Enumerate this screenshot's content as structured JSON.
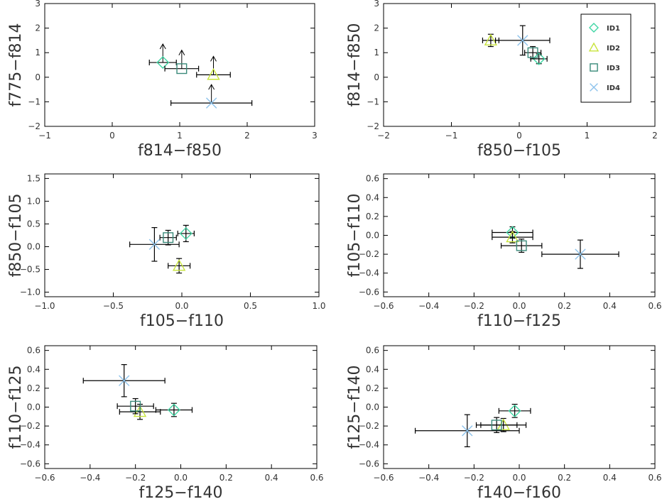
{
  "colors": {
    "ID1": "#3fd6a4",
    "ID2": "#c8e43c",
    "ID3": "#3a8a7a",
    "ID4": "#8ec3ec",
    "errorbar": "#000000",
    "axes": "#000000"
  },
  "markers": {
    "ID1": "diamond-icon",
    "ID2": "triangle-icon",
    "ID3": "square-icon",
    "ID4": "cross-icon"
  },
  "legend": {
    "panel": 1,
    "position": "top-right",
    "entries": [
      "ID1",
      "ID2",
      "ID3",
      "ID4"
    ]
  },
  "chart_data": [
    {
      "type": "scatter",
      "xlabel": "f814−f850",
      "ylabel": "f775−f814",
      "xlim": [
        -1,
        3
      ],
      "ylim": [
        -2,
        3
      ],
      "xticks": [
        -1,
        0,
        1,
        2,
        3
      ],
      "yticks": [
        -2,
        -1,
        0,
        1,
        2,
        3
      ],
      "xtick_labels": [
        "−1",
        "0",
        "1",
        "2",
        "3"
      ],
      "ytick_labels": [
        "−2",
        "−1",
        "0",
        "1",
        "2",
        "3"
      ],
      "series": [
        {
          "name": "ID1",
          "x": 0.75,
          "y": 0.6,
          "xerr": 0.2,
          "yerr": 0,
          "lower_limit": true
        },
        {
          "name": "ID2",
          "x": 1.5,
          "y": 0.1,
          "xerr": 0.25,
          "yerr": 0,
          "lower_limit": true
        },
        {
          "name": "ID3",
          "x": 1.03,
          "y": 0.35,
          "xerr": 0.25,
          "yerr": 0,
          "lower_limit": true
        },
        {
          "name": "ID4",
          "x": 1.47,
          "y": -1.05,
          "xerr": 0.6,
          "yerr": 0,
          "lower_limit": true
        }
      ]
    },
    {
      "type": "scatter",
      "xlabel": "f850−f105",
      "ylabel": "f814−f850",
      "xlim": [
        -2,
        2
      ],
      "ylim": [
        -2,
        3
      ],
      "xticks": [
        -2,
        -1,
        0,
        1,
        2
      ],
      "yticks": [
        -2,
        -1,
        0,
        1,
        2,
        3
      ],
      "xtick_labels": [
        "−2",
        "−1",
        "0",
        "1",
        "2"
      ],
      "ytick_labels": [
        "−2",
        "−1",
        "0",
        "1",
        "2",
        "3"
      ],
      "series": [
        {
          "name": "ID1",
          "x": 0.29,
          "y": 0.75,
          "xerr": 0.12,
          "yerr": 0.2
        },
        {
          "name": "ID2",
          "x": -0.42,
          "y": 1.5,
          "xerr": 0.12,
          "yerr": 0.25
        },
        {
          "name": "ID3",
          "x": 0.2,
          "y": 1.0,
          "xerr": 0.12,
          "yerr": 0.25
        },
        {
          "name": "ID4",
          "x": 0.05,
          "y": 1.5,
          "xerr": 0.4,
          "yerr": 0.6
        }
      ]
    },
    {
      "type": "scatter",
      "xlabel": "f105−f110",
      "ylabel": "f850−f105",
      "xlim": [
        -1.0,
        1.0
      ],
      "ylim": [
        -1.1,
        1.6
      ],
      "xticks": [
        -1.0,
        -0.5,
        0.0,
        0.5,
        1.0
      ],
      "yticks": [
        -1.0,
        -0.5,
        0.0,
        0.5,
        1.0,
        1.5
      ],
      "xtick_labels": [
        "−1.0",
        "−0.5",
        "0.0",
        "0.5",
        "1.0"
      ],
      "ytick_labels": [
        "−1.0",
        "−0.5",
        "0.0",
        "0.5",
        "1.0",
        "1.5"
      ],
      "series": [
        {
          "name": "ID1",
          "x": 0.03,
          "y": 0.29,
          "xerr": 0.06,
          "yerr": 0.18
        },
        {
          "name": "ID2",
          "x": -0.02,
          "y": -0.42,
          "xerr": 0.08,
          "yerr": 0.16
        },
        {
          "name": "ID3",
          "x": -0.1,
          "y": 0.2,
          "xerr": 0.06,
          "yerr": 0.16
        },
        {
          "name": "ID4",
          "x": -0.2,
          "y": 0.05,
          "xerr": 0.18,
          "yerr": 0.37
        }
      ]
    },
    {
      "type": "scatter",
      "xlabel": "f110−f125",
      "ylabel": "f105−f110",
      "xlim": [
        -0.6,
        0.6
      ],
      "ylim": [
        -0.65,
        0.65
      ],
      "xticks": [
        -0.6,
        -0.4,
        -0.2,
        0.0,
        0.2,
        0.4,
        0.6
      ],
      "yticks": [
        -0.6,
        -0.4,
        -0.2,
        0.0,
        0.2,
        0.4,
        0.6
      ],
      "xtick_labels": [
        "−0.6",
        "−0.4",
        "−0.2",
        "0.0",
        "0.2",
        "0.4",
        "0.6"
      ],
      "ytick_labels": [
        "−0.6",
        "−0.4",
        "−0.2",
        "0.0",
        "0.2",
        "0.4",
        "0.6"
      ],
      "series": [
        {
          "name": "ID1",
          "x": -0.03,
          "y": 0.03,
          "xerr": 0.09,
          "yerr": 0.06
        },
        {
          "name": "ID2",
          "x": -0.03,
          "y": -0.02,
          "xerr": 0.09,
          "yerr": 0.06
        },
        {
          "name": "ID3",
          "x": 0.01,
          "y": -0.11,
          "xerr": 0.09,
          "yerr": 0.07
        },
        {
          "name": "ID4",
          "x": 0.27,
          "y": -0.2,
          "xerr": 0.17,
          "yerr": 0.15
        }
      ]
    },
    {
      "type": "scatter",
      "xlabel": "f125−f140",
      "ylabel": "f110−f125",
      "xlim": [
        -0.6,
        0.6
      ],
      "ylim": [
        -0.65,
        0.65
      ],
      "xticks": [
        -0.6,
        -0.4,
        -0.2,
        0.0,
        0.2,
        0.4,
        0.6
      ],
      "yticks": [
        -0.6,
        -0.4,
        -0.2,
        0.0,
        0.2,
        0.4,
        0.6
      ],
      "xtick_labels": [
        "−0.6",
        "−0.4",
        "−0.2",
        "0.0",
        "0.2",
        "0.4",
        "0.6"
      ],
      "ytick_labels": [
        "−0.6",
        "−0.4",
        "−0.2",
        "0.0",
        "0.2",
        "0.4",
        "0.6"
      ],
      "series": [
        {
          "name": "ID1",
          "x": -0.03,
          "y": -0.03,
          "xerr": 0.08,
          "yerr": 0.07
        },
        {
          "name": "ID2",
          "x": -0.18,
          "y": -0.05,
          "xerr": 0.09,
          "yerr": 0.08
        },
        {
          "name": "ID3",
          "x": -0.2,
          "y": 0.01,
          "xerr": 0.08,
          "yerr": 0.08
        },
        {
          "name": "ID4",
          "x": -0.25,
          "y": 0.28,
          "xerr": 0.18,
          "yerr": 0.17
        }
      ]
    },
    {
      "type": "scatter",
      "xlabel": "f140−f160",
      "ylabel": "f125−f140",
      "xlim": [
        -0.6,
        0.6
      ],
      "ylim": [
        -0.65,
        0.65
      ],
      "xticks": [
        -0.6,
        -0.4,
        -0.2,
        0.0,
        0.2,
        0.4,
        0.6
      ],
      "yticks": [
        -0.6,
        -0.4,
        -0.2,
        0.0,
        0.2,
        0.4,
        0.6
      ],
      "xtick_labels": [
        "−0.6",
        "−0.4",
        "−0.2",
        "0.0",
        "0.2",
        "0.4",
        "0.6"
      ],
      "ytick_labels": [
        "−0.6",
        "−0.4",
        "−0.2",
        "0.0",
        "0.2",
        "0.4",
        "0.6"
      ],
      "series": [
        {
          "name": "ID1",
          "x": -0.02,
          "y": -0.04,
          "xerr": 0.07,
          "yerr": 0.07
        },
        {
          "name": "ID2",
          "x": -0.07,
          "y": -0.19,
          "xerr": 0.1,
          "yerr": 0.07
        },
        {
          "name": "ID3",
          "x": -0.1,
          "y": -0.19,
          "xerr": 0.09,
          "yerr": 0.08
        },
        {
          "name": "ID4",
          "x": -0.23,
          "y": -0.25,
          "xerr": 0.23,
          "yerr": 0.17
        }
      ]
    }
  ]
}
